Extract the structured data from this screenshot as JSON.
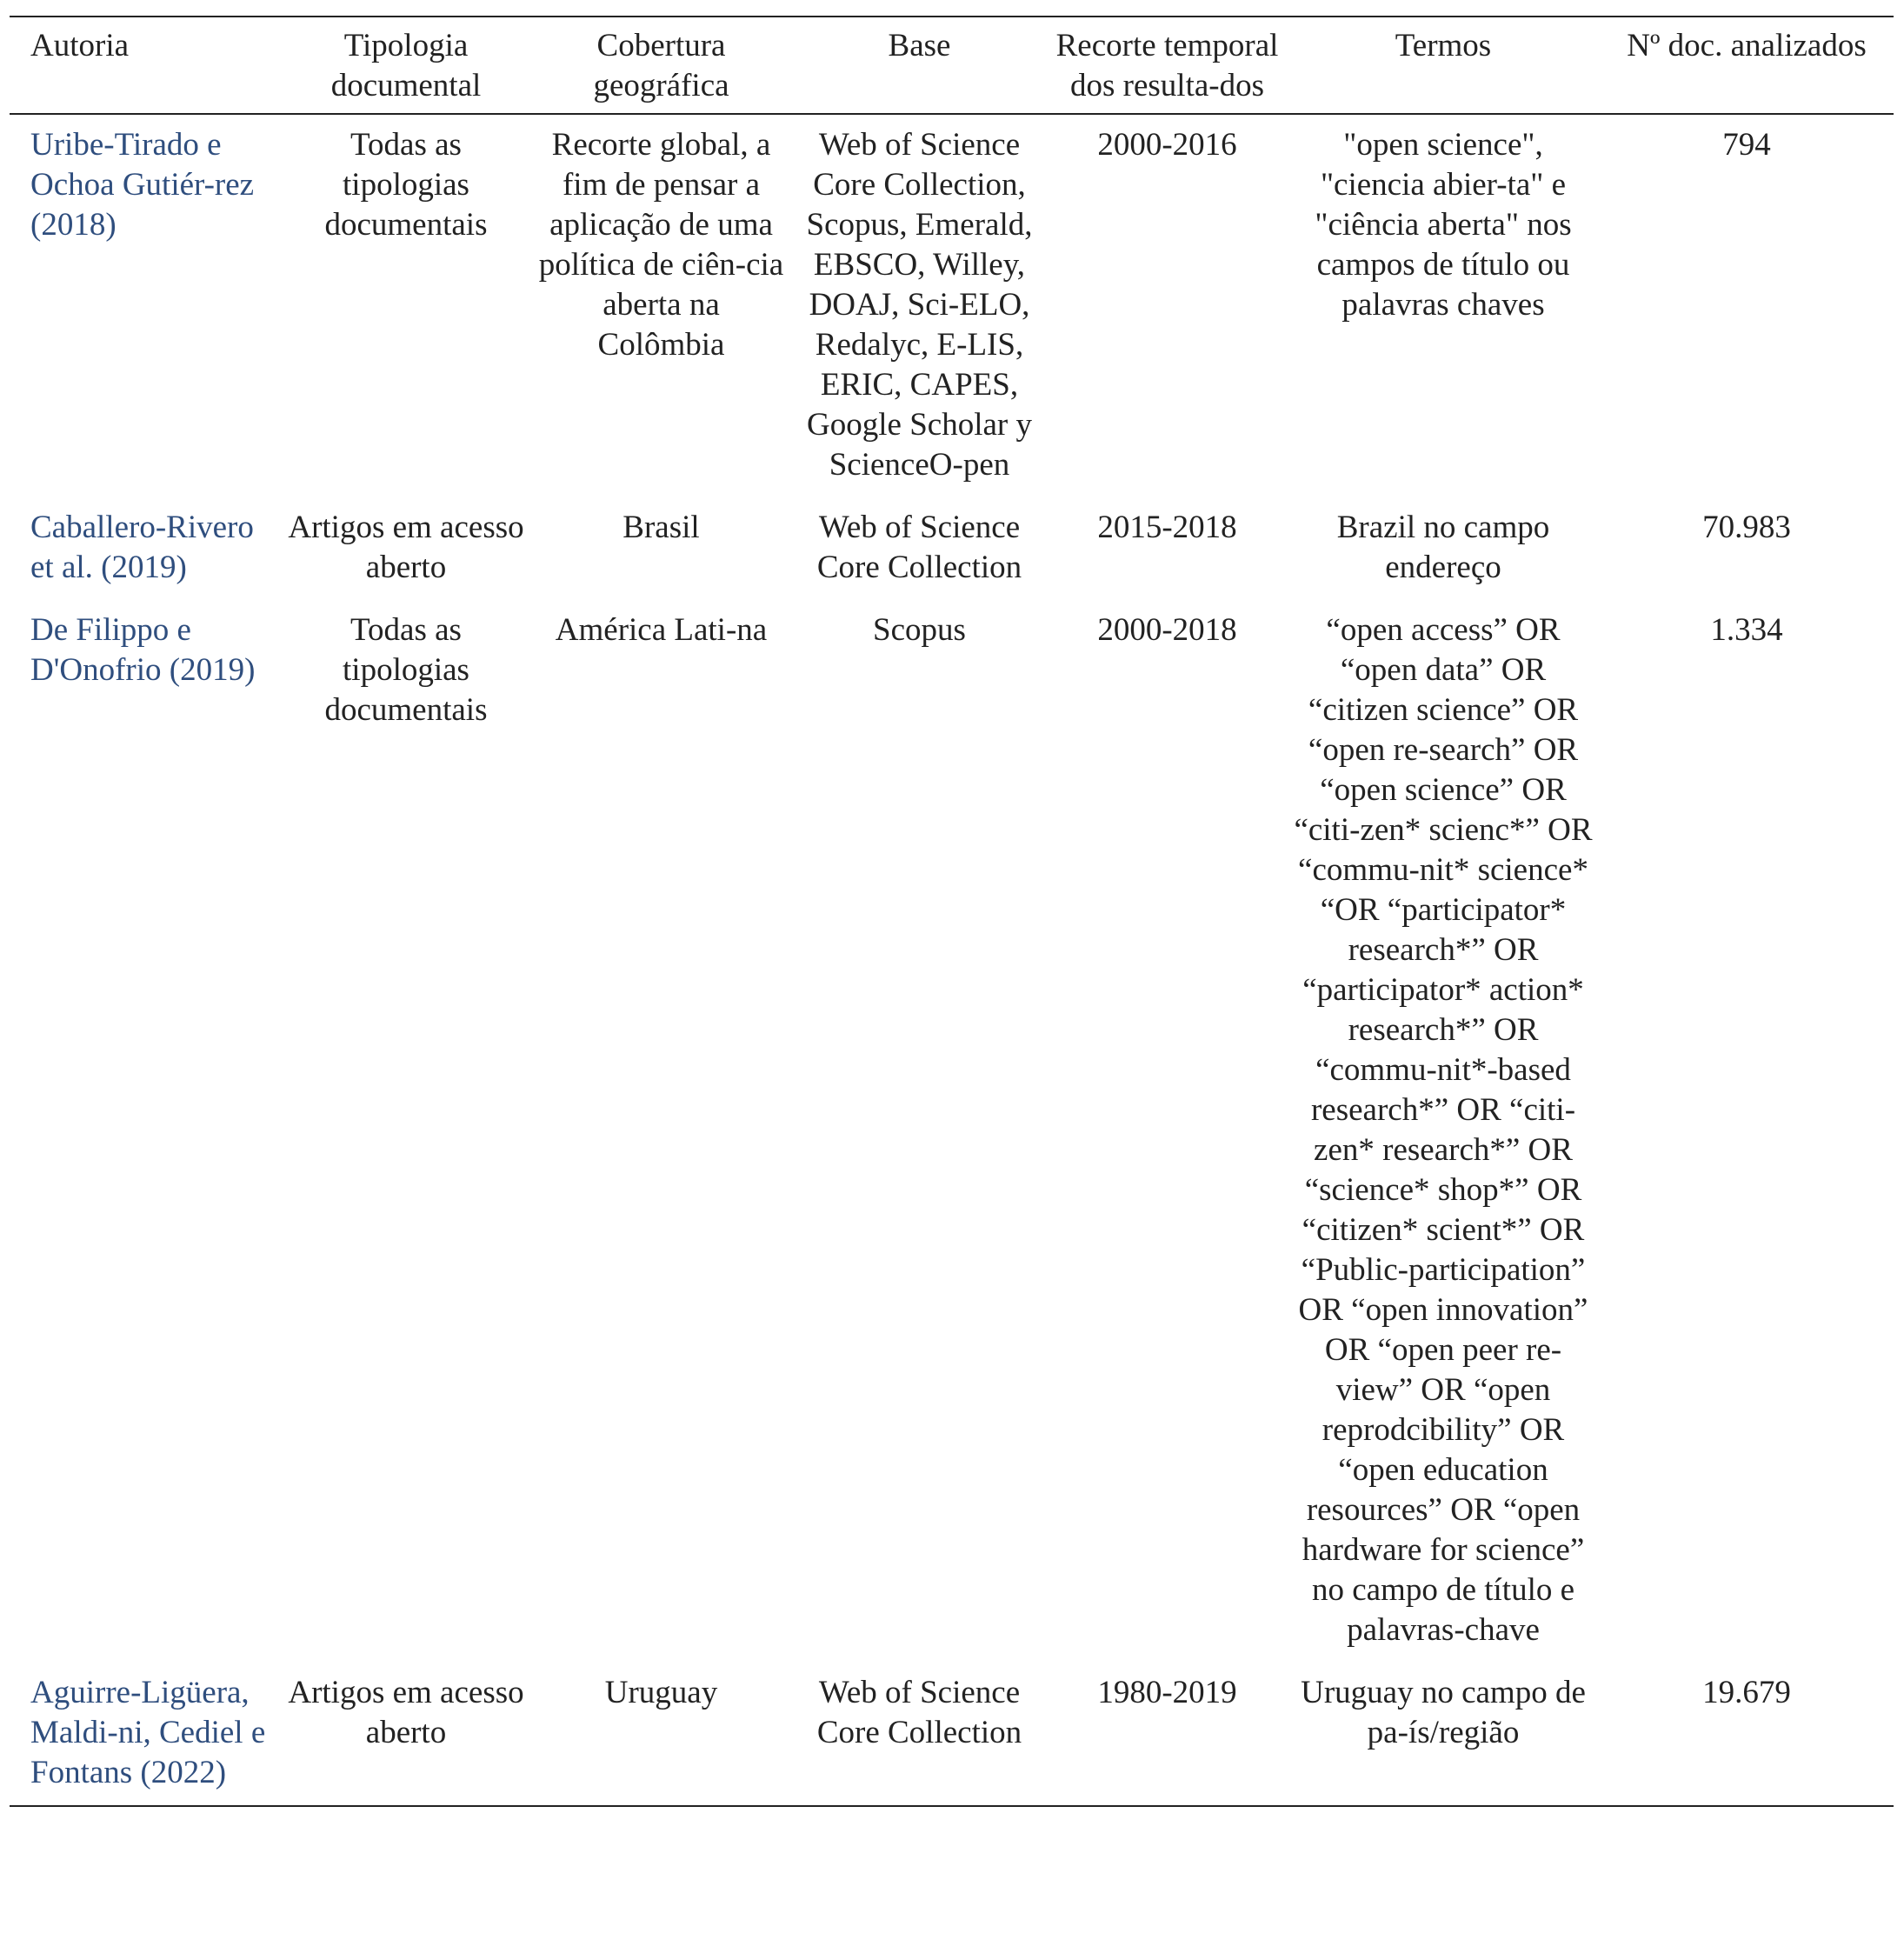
{
  "table": {
    "header": [
      "Autoria",
      "Tipologia documental",
      "Cobertura geográfica",
      "Base",
      "Recorte temporal dos resulta-dos",
      "Termos",
      "Nº doc. analizados"
    ],
    "rows": [
      [
        "Uribe-Tirado e Ochoa Gutiér-rez (2018)",
        "Todas as tipologias documentais",
        "Recorte global, a fim de pensar a aplicação de uma política de ciên-cia aberta na Colômbia",
        "Web of Science Core Collection, Scopus, Emerald, EBSCO, Willey, DOAJ, Sci-ELO, Redalyc, E-LIS, ERIC, CAPES, Google Scholar y ScienceO-pen",
        "2000-2016",
        "\"open science\", \"ciencia abier-ta\" e \"ciência aberta\" nos campos de título ou palavras chaves",
        "794"
      ],
      [
        "Caballero-Rivero et al. (2019)",
        "Artigos em acesso aberto",
        "Brasil",
        "Web of Science Core Collection",
        "2015-2018",
        "Brazil no campo endereço",
        "70.983"
      ],
      [
        "De Filippo e D'Onofrio (2019)",
        "Todas as tipologias documentais",
        "América Lati-na",
        "Scopus",
        "2000-2018",
        "“open access” OR “open data” OR “citizen science” OR “open re-search” OR “open science” OR “citi-zen* scienc*” OR “commu-nit* science* “OR “participator* research*” OR “participator* action* research*” OR “commu-nit*-based research*” OR “citi-zen* research*” OR “science* shop*” OR “citizen* scient*” OR “Public-participation” OR “open innovation” OR “open peer re-view” OR “open reprodcibility” OR “open education resources” OR “open hardware for science” no campo de título e palavras-chave",
        "1.334"
      ],
      [
        "Aguirre-Ligüera, Maldi-ni, Cediel e Fontans (2022)",
        "Artigos em acesso aberto",
        "Uruguay",
        "Web of Science Core Collection",
        "1980-2019",
        "Uruguay no campo de pa-ís/região",
        "19.679"
      ]
    ]
  }
}
